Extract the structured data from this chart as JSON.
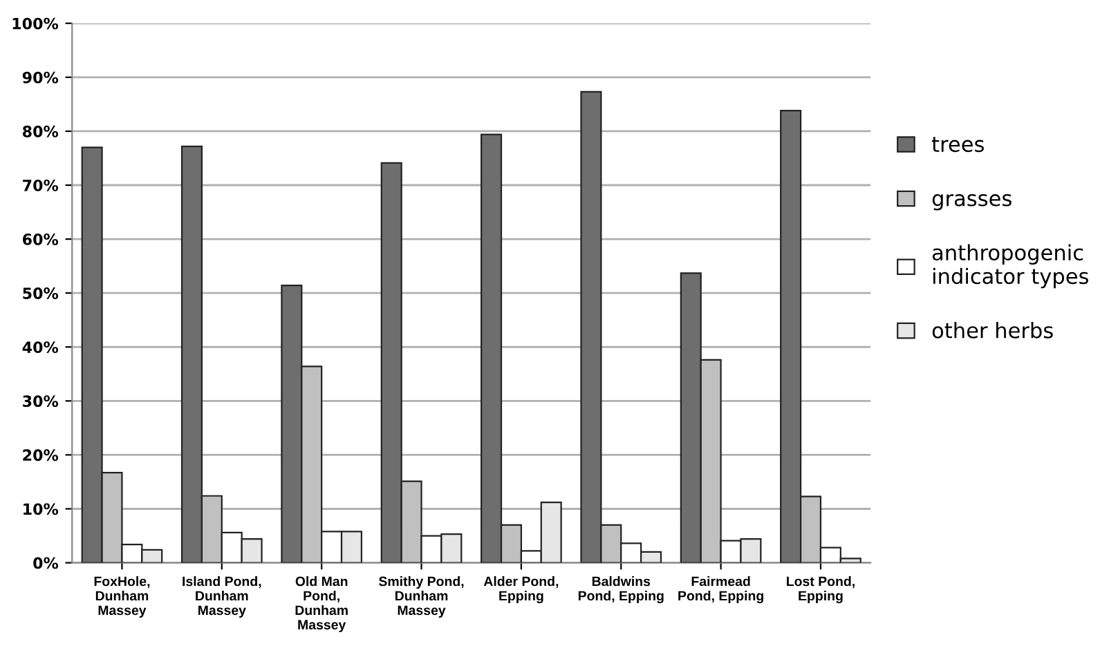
{
  "chart_data": {
    "type": "bar",
    "categories": [
      "FoxHole,\nDunham\nMassey",
      "Island Pond,\nDunham\nMassey",
      "Old Man\nPond,\nDunham\nMassey",
      "Smithy Pond,\nDunham\nMassey",
      "Alder Pond,\nEpping",
      "Baldwins\nPond, Epping",
      "Fairmead\nPond, Epping",
      "Lost Pond,\nEpping"
    ],
    "series": [
      {
        "name": "trees",
        "color": "#6e6e6e",
        "values": [
          77.0,
          77.2,
          51.4,
          74.1,
          79.4,
          87.3,
          53.7,
          83.8
        ]
      },
      {
        "name": "grasses",
        "color": "#c0c0c0",
        "values": [
          16.7,
          12.4,
          36.4,
          15.1,
          7.0,
          7.0,
          37.6,
          12.3
        ]
      },
      {
        "name": "anthropogenic\nindicator types",
        "color": "#ffffff",
        "values": [
          3.4,
          5.6,
          5.8,
          5.0,
          2.2,
          3.6,
          4.1,
          2.8
        ]
      },
      {
        "name": "other herbs",
        "color": "#e6e6e6",
        "values": [
          2.4,
          4.4,
          5.8,
          5.3,
          11.2,
          2.0,
          4.4,
          0.8
        ]
      }
    ],
    "ylim": [
      0,
      100
    ],
    "yticks": [
      {
        "value": 0,
        "label": "0%"
      },
      {
        "value": 10,
        "label": "10%"
      },
      {
        "value": 20,
        "label": "20%"
      },
      {
        "value": 30,
        "label": "30%"
      },
      {
        "value": 40,
        "label": "40%"
      },
      {
        "value": 50,
        "label": "50%"
      },
      {
        "value": 60,
        "label": "60%"
      },
      {
        "value": 70,
        "label": "70%"
      },
      {
        "value": 80,
        "label": "80%"
      },
      {
        "value": 90,
        "label": "90%"
      },
      {
        "value": 100,
        "label": "100%"
      }
    ],
    "grid": "y",
    "legend": "right"
  }
}
